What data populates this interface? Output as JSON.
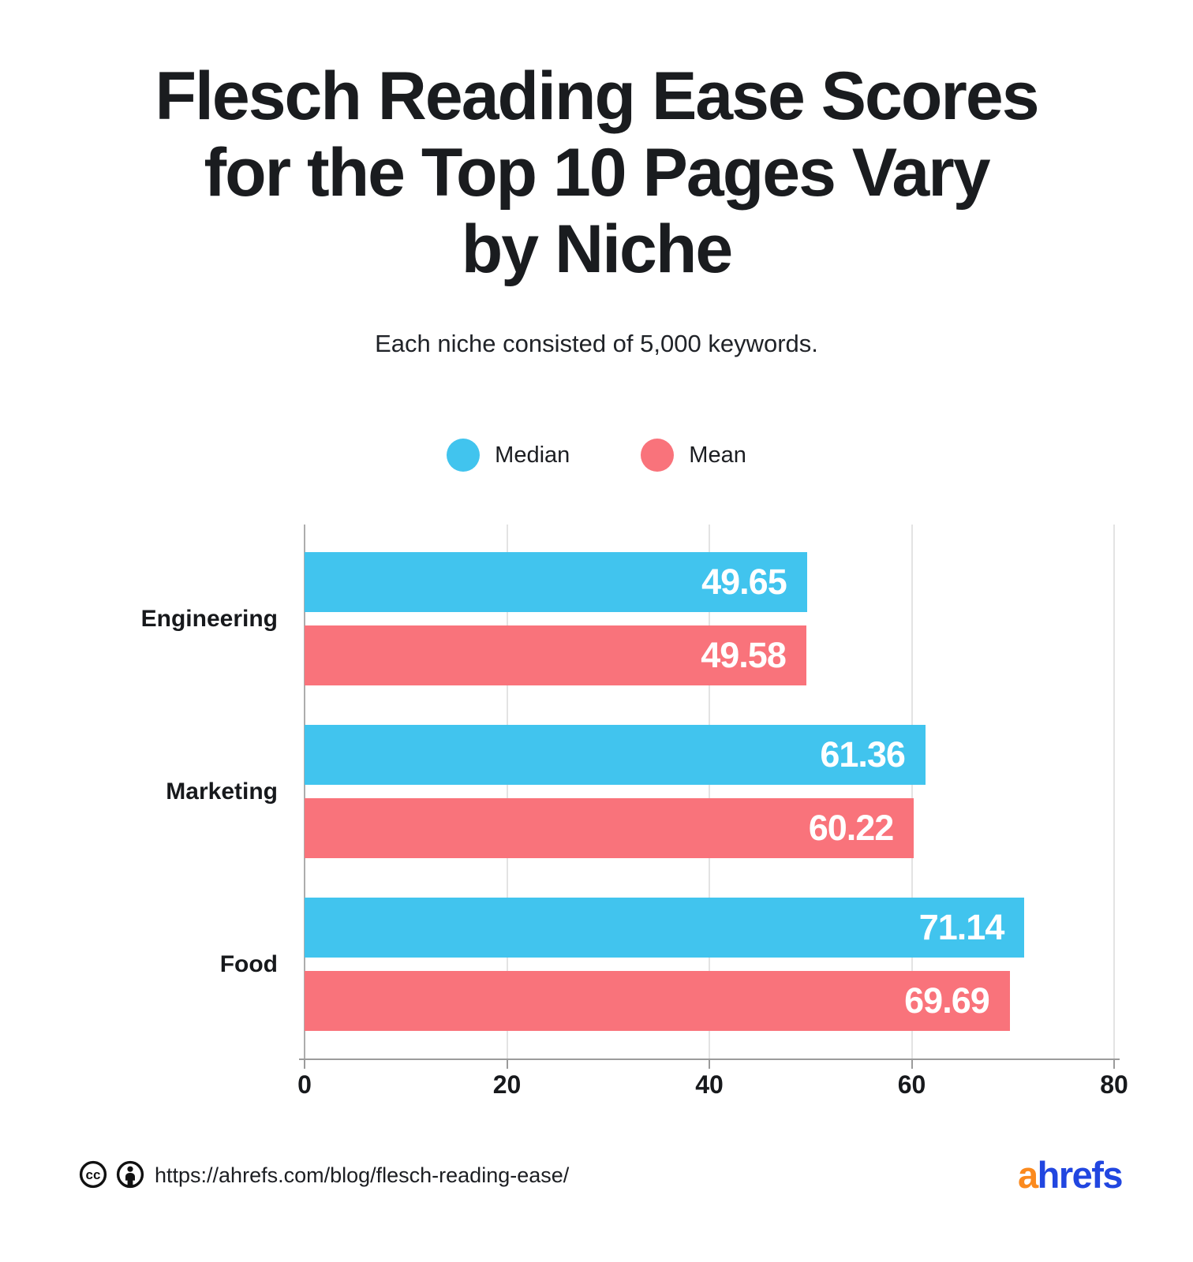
{
  "header": {
    "title_lines": [
      "Flesch Reading Ease Scores",
      "for the Top 10 Pages Vary",
      "by Niche"
    ],
    "subtitle": "Each niche consisted of 5,000 keywords."
  },
  "chart_data": {
    "type": "bar",
    "orientation": "horizontal",
    "title": "Flesch Reading Ease Scores for the Top 10 Pages Vary by Niche",
    "subtitle": "Each niche consisted of 5,000 keywords.",
    "categories": [
      "Engineering",
      "Marketing",
      "Food"
    ],
    "series": [
      {
        "name": "Median",
        "color": "#41C4EE",
        "values": [
          49.65,
          61.36,
          71.14
        ]
      },
      {
        "name": "Mean",
        "color": "#F9737B",
        "values": [
          49.58,
          60.22,
          69.69
        ]
      }
    ],
    "xlim": [
      0,
      80
    ],
    "x_ticks": [
      0,
      20,
      40,
      60,
      80
    ],
    "grid": true,
    "legend_position": "top",
    "value_label_color": "#FFFFFF",
    "gridline_color": "#E3E3E3",
    "zero_line_color": "#ADADAD",
    "axis_line_color": "#9B9B9B"
  },
  "footer": {
    "license_icons": [
      "cc-icon",
      "attribution-icon"
    ],
    "url": "https://ahrefs.com/blog/flesch-reading-ease/",
    "brand": {
      "text_a": "a",
      "text_rest": "hrefs",
      "color_a": "#FB8A1E",
      "color_rest": "#2146E0"
    }
  }
}
